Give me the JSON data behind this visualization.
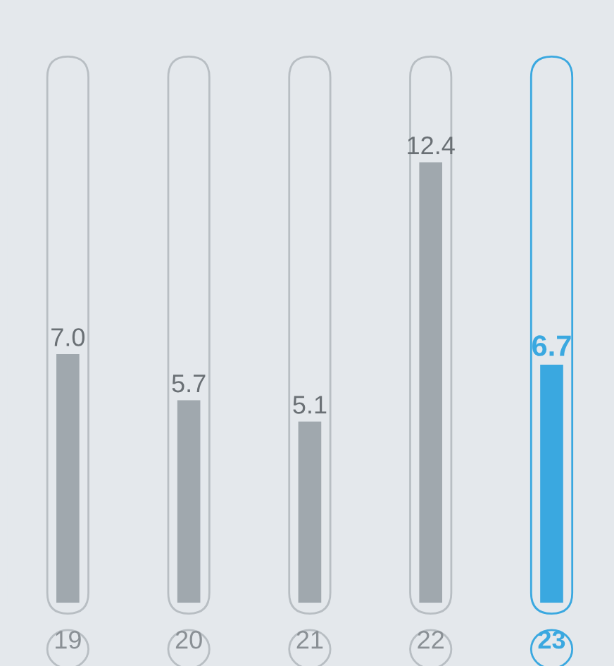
{
  "chart_data": {
    "type": "bar",
    "categories": [
      "19",
      "20",
      "21",
      "22",
      "23"
    ],
    "values": [
      7.0,
      5.7,
      5.1,
      12.4,
      6.7
    ],
    "value_labels": [
      "7.0",
      "5.7",
      "5.1",
      "12.4",
      "6.7"
    ],
    "colors": [
      "#a0a8ae",
      "#a0a8ae",
      "#a0a8ae",
      "#a0a8ae",
      "#3aa8e0"
    ],
    "grid": false,
    "legend": false
  }
}
